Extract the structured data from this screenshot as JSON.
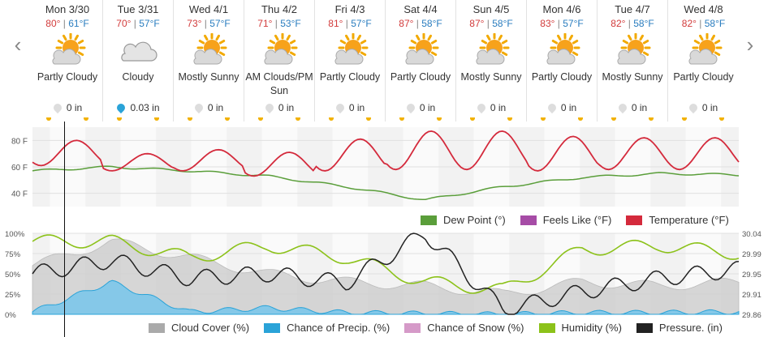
{
  "nav": {
    "prev_icon": "chevron-left-icon",
    "next_icon": "chevron-right-icon"
  },
  "days": [
    {
      "date": "Mon 3/30",
      "hi": "80°",
      "lo": "61°F",
      "icon": "partly-cloudy-icon",
      "cond": "Partly Cloudy",
      "precip": "0 in",
      "precip_color": "#dddddd"
    },
    {
      "date": "Tue 3/31",
      "hi": "70°",
      "lo": "57°F",
      "icon": "cloudy-icon",
      "cond": "Cloudy",
      "precip": "0.03 in",
      "precip_color": "#2aa3d8"
    },
    {
      "date": "Wed 4/1",
      "hi": "73°",
      "lo": "57°F",
      "icon": "partly-cloudy-icon",
      "cond": "Mostly Sunny",
      "precip": "0 in",
      "precip_color": "#dddddd"
    },
    {
      "date": "Thu 4/2",
      "hi": "71°",
      "lo": "53°F",
      "icon": "partly-cloudy-icon",
      "cond": "AM Clouds/PM Sun",
      "precip": "0 in",
      "precip_color": "#dddddd"
    },
    {
      "date": "Fri 4/3",
      "hi": "81°",
      "lo": "57°F",
      "icon": "partly-cloudy-icon",
      "cond": "Partly Cloudy",
      "precip": "0 in",
      "precip_color": "#dddddd"
    },
    {
      "date": "Sat 4/4",
      "hi": "87°",
      "lo": "58°F",
      "icon": "partly-cloudy-icon",
      "cond": "Partly Cloudy",
      "precip": "0 in",
      "precip_color": "#dddddd"
    },
    {
      "date": "Sun 4/5",
      "hi": "87°",
      "lo": "58°F",
      "icon": "partly-cloudy-icon",
      "cond": "Mostly Sunny",
      "precip": "0 in",
      "precip_color": "#dddddd"
    },
    {
      "date": "Mon 4/6",
      "hi": "83°",
      "lo": "57°F",
      "icon": "partly-cloudy-icon",
      "cond": "Partly Cloudy",
      "precip": "0 in",
      "precip_color": "#dddddd"
    },
    {
      "date": "Tue 4/7",
      "hi": "82°",
      "lo": "58°F",
      "icon": "partly-cloudy-icon",
      "cond": "Mostly Sunny",
      "precip": "0 in",
      "precip_color": "#dddddd"
    },
    {
      "date": "Wed 4/8",
      "hi": "82°",
      "lo": "58°F",
      "icon": "partly-cloudy-icon",
      "cond": "Partly Cloudy",
      "precip": "0 in",
      "precip_color": "#dddddd"
    }
  ],
  "temp_chart": {
    "y_ticks": [
      "80 F",
      "60 F",
      "40 F"
    ],
    "legend": [
      {
        "label": "Dew Point (°)",
        "color": "#5a9e3a"
      },
      {
        "label": "Feels Like (°F)",
        "color": "#a64ca6"
      },
      {
        "label": "Temperature (°F)",
        "color": "#d42a3c"
      }
    ]
  },
  "lower_chart": {
    "y_left": [
      "100%",
      "75%",
      "50%",
      "25%",
      "0%"
    ],
    "y_right": [
      "30.04",
      "29.99",
      "29.95",
      "29.91",
      "29.86"
    ],
    "legend": [
      {
        "label": "Cloud Cover (%)",
        "color": "#aaaaaa"
      },
      {
        "label": "Chance of Precip. (%)",
        "color": "#2aa3d8"
      },
      {
        "label": "Chance of Snow (%)",
        "color": "#d59ac8"
      },
      {
        "label": "Humidity (%)",
        "color": "#8cc21a"
      },
      {
        "label": "Pressure. (in)",
        "color": "#222222"
      }
    ]
  },
  "chart_data": [
    {
      "type": "line",
      "x": [
        "Mon 3/30",
        "Tue 3/31",
        "Wed 4/1",
        "Thu 4/2",
        "Fri 4/3",
        "Sat 4/4",
        "Sun 4/5",
        "Mon 4/6",
        "Tue 4/7",
        "Wed 4/8"
      ],
      "ylim": [
        30,
        90
      ],
      "series": [
        {
          "name": "Temperature (°F)",
          "values": [
            80,
            70,
            73,
            71,
            81,
            87,
            87,
            83,
            82,
            82
          ]
        },
        {
          "name": "Dew Point (°)",
          "values": [
            57,
            60,
            57,
            53,
            45,
            35,
            45,
            52,
            55,
            54
          ]
        }
      ]
    },
    {
      "type": "line",
      "x": [
        "Mon 3/30",
        "Tue 3/31",
        "Wed 4/1",
        "Thu 4/2",
        "Fri 4/3",
        "Sat 4/4",
        "Sun 4/5",
        "Mon 4/6",
        "Tue 4/7",
        "Wed 4/8"
      ],
      "ylim": [
        0,
        100
      ],
      "series": [
        {
          "name": "Cloud Cover (%)",
          "values": [
            60,
            90,
            70,
            50,
            40,
            35,
            25,
            40,
            35,
            40
          ]
        },
        {
          "name": "Chance of Precip. (%)",
          "values": [
            3,
            40,
            3,
            8,
            2,
            1,
            0,
            2,
            2,
            3
          ]
        },
        {
          "name": "Humidity (%)",
          "values": [
            90,
            90,
            70,
            85,
            70,
            40,
            30,
            80,
            85,
            75
          ]
        },
        {
          "name": "Pressure. (in)",
          "values": [
            29.95,
            29.98,
            29.94,
            29.95,
            29.93,
            30.04,
            29.87,
            29.91,
            29.94,
            29.96
          ]
        }
      ]
    }
  ]
}
